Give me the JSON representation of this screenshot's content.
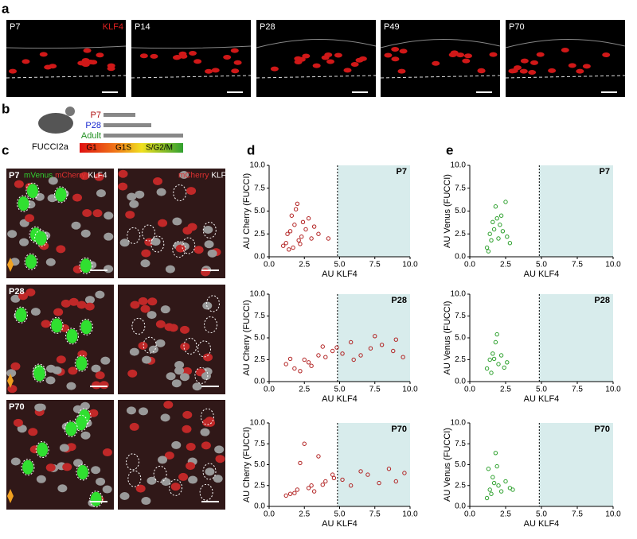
{
  "panel_labels": [
    "a",
    "b",
    "c",
    "d",
    "e"
  ],
  "panel_a": {
    "images": [
      "P7",
      "P14",
      "P28",
      "P49",
      "P70"
    ],
    "stain": "KLF4"
  },
  "panel_b": {
    "ages": [
      "P7",
      "P28",
      "Adult"
    ],
    "mouse": "FUCCI2a",
    "phases": [
      "G1",
      "G1S",
      "S/G2/M"
    ]
  },
  "panel_c": {
    "rows": [
      "P7",
      "P28",
      "P70"
    ],
    "left_labels": [
      "mVenus",
      "mCherry",
      "KLF4"
    ],
    "right_labels": [
      "mCherry",
      "KLF4"
    ]
  },
  "chart_data": [
    {
      "type": "scatter",
      "title": "P7",
      "xlabel": "AU KLF4",
      "ylabel": "AU Cherry (FUCCI)",
      "color": "#b22222",
      "threshold": 4.85,
      "x": [
        1.2,
        1.5,
        1.8,
        2.0,
        2.3,
        1.0,
        1.6,
        2.6,
        3.0,
        1.4,
        2.1,
        2.8,
        3.5,
        4.2,
        1.9,
        2.4,
        1.3,
        1.7,
        2.2,
        3.2
      ],
      "y": [
        1.5,
        2.8,
        3.5,
        5.8,
        2.2,
        1.2,
        4.5,
        3.0,
        2.0,
        0.8,
        1.8,
        4.2,
        2.5,
        2.0,
        5.2,
        3.8,
        2.5,
        1.0,
        1.4,
        3.3
      ],
      "xlim": [
        0,
        10
      ],
      "ylim": [
        0,
        10
      ],
      "xticks": [
        {
          "value": 0,
          "label": "0.0"
        },
        {
          "value": 2.5,
          "label": "2.5"
        },
        {
          "value": 5,
          "label": "5.0"
        },
        {
          "value": 7.5,
          "label": "7.5"
        },
        {
          "value": 10,
          "label": "10.0"
        }
      ],
      "yticks": [
        {
          "value": 0,
          "label": "0.0"
        },
        {
          "value": 2.5,
          "label": "2.5"
        },
        {
          "value": 5,
          "label": "5.0"
        },
        {
          "value": 7.5,
          "label": "7.5"
        },
        {
          "value": 10,
          "label": "10.0"
        }
      ]
    },
    {
      "type": "scatter",
      "title": "P28",
      "xlabel": "AU KLF4",
      "ylabel": "AU Cherry (FUCCI)",
      "color": "#b22222",
      "threshold": 4.85,
      "x": [
        1.2,
        1.8,
        2.5,
        3.0,
        3.5,
        4.0,
        4.5,
        2.2,
        2.8,
        3.8,
        5.2,
        5.8,
        6.5,
        7.2,
        8.0,
        8.8,
        9.5,
        6.0,
        7.5,
        9.0,
        1.5,
        4.8
      ],
      "y": [
        2.0,
        1.5,
        2.5,
        1.8,
        3.0,
        2.8,
        3.5,
        1.2,
        2.2,
        4.0,
        3.2,
        4.5,
        3.0,
        3.8,
        4.2,
        3.5,
        2.8,
        2.5,
        5.2,
        4.8,
        2.6,
        3.9
      ],
      "xlim": [
        0,
        10
      ],
      "ylim": [
        0,
        10
      ],
      "xticks": [
        {
          "value": 0,
          "label": "0.0"
        },
        {
          "value": 2.5,
          "label": "2.5"
        },
        {
          "value": 5,
          "label": "5.0"
        },
        {
          "value": 7.5,
          "label": "7.5"
        },
        {
          "value": 10,
          "label": "10.0"
        }
      ],
      "yticks": [
        {
          "value": 0,
          "label": "0.0"
        },
        {
          "value": 2.5,
          "label": "2.5"
        },
        {
          "value": 5,
          "label": "5.0"
        },
        {
          "value": 7.5,
          "label": "7.5"
        },
        {
          "value": 10,
          "label": "10.0"
        }
      ]
    },
    {
      "type": "scatter",
      "title": "P70",
      "xlabel": "AU KLF4",
      "ylabel": "AU Cherry (FUCCI)",
      "color": "#b22222",
      "threshold": 4.85,
      "x": [
        1.2,
        1.5,
        2.0,
        2.5,
        3.0,
        3.2,
        3.5,
        4.0,
        4.5,
        2.8,
        2.2,
        3.8,
        5.2,
        5.8,
        6.5,
        7.0,
        7.8,
        8.5,
        9.0,
        9.6,
        4.6,
        1.8
      ],
      "y": [
        1.3,
        1.5,
        2.0,
        7.5,
        2.5,
        1.8,
        6.0,
        3.0,
        3.8,
        2.2,
        5.2,
        2.6,
        3.2,
        2.5,
        4.2,
        3.8,
        2.8,
        4.5,
        3.0,
        4.0,
        3.4,
        1.6
      ],
      "xlim": [
        0,
        10
      ],
      "ylim": [
        0,
        10
      ],
      "xticks": [
        {
          "value": 0,
          "label": "0.0"
        },
        {
          "value": 2.5,
          "label": "2.5"
        },
        {
          "value": 5,
          "label": "5.0"
        },
        {
          "value": 7.5,
          "label": "7.5"
        },
        {
          "value": 10,
          "label": "10.0"
        }
      ],
      "yticks": [
        {
          "value": 0,
          "label": "0.0"
        },
        {
          "value": 2.5,
          "label": "2.5"
        },
        {
          "value": 5,
          "label": "5.0"
        },
        {
          "value": 7.5,
          "label": "7.5"
        },
        {
          "value": 10,
          "label": "10.0"
        }
      ]
    },
    {
      "type": "scatter",
      "title": "P7",
      "xlabel": "AU KLF4",
      "ylabel": "AU Venus (FUCCI)",
      "color": "#2ca02c",
      "threshold": 4.85,
      "x": [
        1.2,
        1.4,
        1.6,
        1.8,
        2.0,
        2.2,
        2.5,
        2.8,
        1.3,
        1.7,
        1.9,
        2.3,
        1.5,
        2.1,
        2.6
      ],
      "y": [
        1.0,
        2.5,
        3.8,
        5.5,
        2.0,
        4.5,
        6.0,
        1.5,
        0.6,
        3.0,
        4.2,
        2.8,
        1.8,
        3.5,
        2.2
      ],
      "xlim": [
        0,
        10
      ],
      "ylim": [
        0,
        10
      ],
      "xticks": [
        {
          "value": 0,
          "label": "0.0"
        },
        {
          "value": 2.5,
          "label": "2.5"
        },
        {
          "value": 5,
          "label": "5.0"
        },
        {
          "value": 7.5,
          "label": "7.5"
        },
        {
          "value": 10,
          "label": "10.0"
        }
      ],
      "yticks": [
        {
          "value": 0,
          "label": "0.0"
        },
        {
          "value": 2.5,
          "label": "2.5"
        },
        {
          "value": 5,
          "label": "5.0"
        },
        {
          "value": 7.5,
          "label": "7.5"
        },
        {
          "value": 10,
          "label": "10.0"
        }
      ]
    },
    {
      "type": "scatter",
      "title": "P28",
      "xlabel": "AU KLF4",
      "ylabel": "AU Venus (FUCCI)",
      "color": "#2ca02c",
      "threshold": 4.85,
      "x": [
        1.2,
        1.4,
        1.6,
        1.8,
        2.0,
        2.2,
        2.6,
        1.5,
        1.9,
        2.4,
        1.7
      ],
      "y": [
        1.5,
        2.5,
        3.2,
        4.5,
        2.0,
        3.0,
        2.2,
        1.0,
        5.4,
        1.6,
        2.6
      ],
      "xlim": [
        0,
        10
      ],
      "ylim": [
        0,
        10
      ],
      "xticks": [
        {
          "value": 0,
          "label": "0.0"
        },
        {
          "value": 2.5,
          "label": "2.5"
        },
        {
          "value": 5,
          "label": "5.0"
        },
        {
          "value": 7.5,
          "label": "7.5"
        },
        {
          "value": 10,
          "label": "10.0"
        }
      ],
      "yticks": [
        {
          "value": 0,
          "label": "0.0"
        },
        {
          "value": 2.5,
          "label": "2.5"
        },
        {
          "value": 5,
          "label": "5.0"
        },
        {
          "value": 7.5,
          "label": "7.5"
        },
        {
          "value": 10,
          "label": "10.0"
        }
      ]
    },
    {
      "type": "scatter",
      "title": "P70",
      "xlabel": "AU KLF4",
      "ylabel": "AU Venus (FUCCI)",
      "color": "#2ca02c",
      "threshold": 4.85,
      "x": [
        1.2,
        1.4,
        1.6,
        1.8,
        2.0,
        2.2,
        2.5,
        2.8,
        1.3,
        1.5,
        1.9,
        3.0,
        1.7
      ],
      "y": [
        1.0,
        2.0,
        3.5,
        6.4,
        2.5,
        1.8,
        3.0,
        2.2,
        4.5,
        1.5,
        4.8,
        2.0,
        2.8
      ],
      "xlim": [
        0,
        10
      ],
      "ylim": [
        0,
        10
      ],
      "xticks": [
        {
          "value": 0,
          "label": "0.0"
        },
        {
          "value": 2.5,
          "label": "2.5"
        },
        {
          "value": 5,
          "label": "5.0"
        },
        {
          "value": 7.5,
          "label": "7.5"
        },
        {
          "value": 10,
          "label": "10.0"
        }
      ],
      "yticks": [
        {
          "value": 0,
          "label": "0.0"
        },
        {
          "value": 2.5,
          "label": "2.5"
        },
        {
          "value": 5,
          "label": "5.0"
        },
        {
          "value": 7.5,
          "label": "7.5"
        },
        {
          "value": 10,
          "label": "10.0"
        }
      ]
    }
  ]
}
